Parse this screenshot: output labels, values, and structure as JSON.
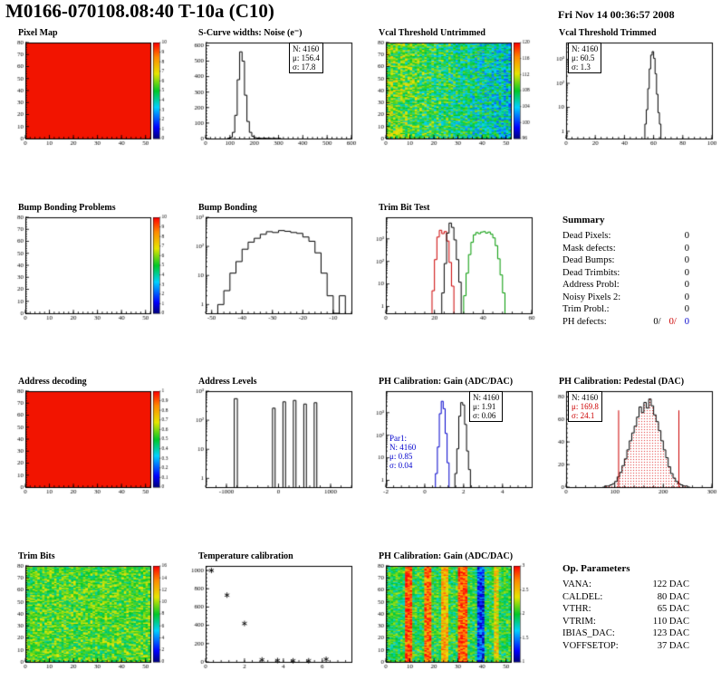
{
  "header": {
    "title": "M0166-070108.08:40 T-10a (C10)",
    "date": "Fri Nov 14 00:36:57 2008"
  },
  "summary": {
    "title": "Summary",
    "rows": [
      {
        "label": "Dead Pixels:",
        "value": "0"
      },
      {
        "label": "Mask defects:",
        "value": "0"
      },
      {
        "label": "Dead Bumps:",
        "value": "0"
      },
      {
        "label": "Dead Trimbits:",
        "value": "0"
      },
      {
        "label": "Address Probl:",
        "value": "0"
      },
      {
        "label": "Noisy Pixels 2:",
        "value": "0"
      },
      {
        "label": "Trim Probl.:",
        "value": "0"
      }
    ],
    "ph_defects": {
      "label": "PH defects:",
      "v1": "0/",
      "v2": "0/",
      "v3": "0"
    }
  },
  "op_parameters": {
    "title": "Op. Parameters",
    "rows": [
      {
        "label": "VANA:",
        "value": "122 DAC"
      },
      {
        "label": "CALDEL:",
        "value": "80 DAC"
      },
      {
        "label": "VTHR:",
        "value": "65 DAC"
      },
      {
        "label": "VTRIM:",
        "value": "110 DAC"
      },
      {
        "label": "IBIAS_DAC:",
        "value": "123 DAC"
      },
      {
        "label": "VOFFSETOP:",
        "value": "37 DAC"
      }
    ]
  },
  "colors": {
    "accent_red": "#cc0000",
    "accent_blue": "#0000cc",
    "map_red": "#f21400",
    "hist_green": "#009900"
  },
  "chart_data": [
    {
      "id": "pixel_map",
      "type": "heatmap",
      "title": "Pixel Map",
      "x_range": [
        0,
        52
      ],
      "y_range": [
        0,
        80
      ],
      "x_ticks": [
        0,
        10,
        20,
        30,
        40,
        50
      ],
      "y_ticks": [
        0,
        10,
        20,
        30,
        40,
        50,
        60,
        70,
        80
      ],
      "style": "solid",
      "color": "#f21400",
      "colorbar": {
        "min": 0,
        "max": 10,
        "ticks": [
          0,
          1,
          2,
          3,
          4,
          5,
          6,
          7,
          8,
          9,
          10
        ]
      }
    },
    {
      "id": "scurve_noise",
      "type": "hist",
      "title": "S-Curve widths: Noise (e⁻)",
      "x_range": [
        0,
        600
      ],
      "x_ticks": [
        0,
        100,
        200,
        300,
        400,
        500,
        600
      ],
      "yscale": "lin",
      "y_range": [
        0,
        620
      ],
      "y_ticks": [
        0,
        100,
        200,
        300,
        400,
        500,
        600
      ],
      "series": [
        {
          "color": "#000000",
          "bin_start": 90,
          "bin_width": 10,
          "counts": [
            2,
            8,
            40,
            150,
            380,
            560,
            500,
            280,
            110,
            40,
            14,
            6,
            3,
            2,
            1,
            2,
            1,
            1,
            0,
            1,
            0,
            1
          ]
        }
      ],
      "stats": [
        "N: 4160",
        "μ: 156.4",
        "σ: 17.8"
      ]
    },
    {
      "id": "vcal_threshold_untrimmed",
      "type": "heatmap",
      "title": "Vcal Threshold Untrimmed",
      "x_range": [
        0,
        52
      ],
      "y_range": [
        0,
        80
      ],
      "x_ticks": [
        0,
        10,
        20,
        30,
        40,
        50
      ],
      "y_ticks": [
        0,
        10,
        20,
        30,
        40,
        50,
        60,
        70,
        80
      ],
      "style": "noise",
      "noise": {
        "seed": 7,
        "base": 0.58,
        "amp": 0.19,
        "grad_x": -0.22
      },
      "colorbar": {
        "min": 96,
        "max": 120,
        "ticks": [
          96,
          100,
          104,
          108,
          112,
          116,
          120
        ]
      }
    },
    {
      "id": "vcal_threshold_trimmed",
      "type": "hist",
      "title": "Vcal Threshold Trimmed",
      "x_range": [
        0,
        100
      ],
      "x_ticks": [
        0,
        20,
        40,
        60,
        80,
        100
      ],
      "yscale": "log",
      "y_range": [
        0.5,
        5000
      ],
      "series": [
        {
          "color": "#000000",
          "bin_start": 54,
          "bin_width": 1,
          "counts": [
            2,
            8,
            60,
            400,
            1500,
            2100,
            1100,
            250,
            35,
            6,
            2
          ]
        }
      ],
      "stats": [
        "N: 4160",
        "μ: 60.5",
        "σ: 1.3"
      ]
    },
    {
      "id": "bump_bonding_problems",
      "type": "heatmap",
      "title": "Bump Bonding Problems",
      "x_range": [
        0,
        52
      ],
      "y_range": [
        0,
        80
      ],
      "x_ticks": [
        0,
        10,
        20,
        30,
        40,
        50
      ],
      "y_ticks": [
        0,
        10,
        20,
        30,
        40,
        50,
        60,
        70,
        80
      ],
      "style": "empty",
      "colorbar": {
        "min": 0,
        "max": 10,
        "ticks": [
          0,
          1,
          2,
          3,
          4,
          5,
          6,
          7,
          8,
          9,
          10
        ]
      }
    },
    {
      "id": "bump_bonding",
      "type": "hist",
      "title": "Bump Bonding",
      "x_range": [
        -52,
        -4
      ],
      "x_ticks": [
        -50,
        -40,
        -30,
        -20,
        -10
      ],
      "yscale": "log",
      "y_range": [
        0.5,
        1000
      ],
      "series": [
        {
          "color": "#000000",
          "bin_start": -48,
          "bin_width": 2,
          "counts": [
            1,
            3,
            12,
            30,
            80,
            140,
            190,
            260,
            320,
            300,
            350,
            330,
            300,
            280,
            210,
            150,
            60,
            12,
            2,
            0,
            2
          ]
        }
      ]
    },
    {
      "id": "trim_bit_test",
      "type": "hist",
      "title": "Trim Bit Test",
      "x_range": [
        0,
        60
      ],
      "x_ticks": [
        0,
        20,
        40,
        60
      ],
      "yscale": "log",
      "y_range": [
        0.5,
        9000
      ],
      "series": [
        {
          "color": "#009900",
          "bin_start": 32,
          "bin_width": 1,
          "counts": [
            3,
            30,
            200,
            700,
            1500,
            1900,
            1700,
            2000,
            2100,
            1800,
            2000,
            1600,
            1100,
            500,
            130,
            25,
            4
          ]
        },
        {
          "color": "#cc0000",
          "bin_start": 19,
          "bin_width": 1,
          "counts": [
            5,
            120,
            1200,
            2400,
            1700,
            2100,
            800,
            90,
            8
          ]
        },
        {
          "color": "#000000",
          "bin_start": 23,
          "bin_width": 1,
          "counts": [
            4,
            80,
            1800,
            5000,
            3200,
            900,
            120,
            12
          ]
        }
      ]
    },
    {
      "id": "address_decoding",
      "type": "heatmap",
      "title": "Address decoding",
      "x_range": [
        0,
        52
      ],
      "y_range": [
        0,
        80
      ],
      "x_ticks": [
        0,
        10,
        20,
        30,
        40,
        50
      ],
      "y_ticks": [
        0,
        10,
        20,
        30,
        40,
        50,
        60,
        70,
        80
      ],
      "style": "solid",
      "color": "#f21400",
      "colorbar": {
        "min": 0,
        "max": 1,
        "ticks": [
          0,
          0.1,
          0.2,
          0.3,
          0.4,
          0.5,
          0.6,
          0.7,
          0.8,
          0.9,
          1
        ]
      }
    },
    {
      "id": "address_levels",
      "type": "hist",
      "title": "Address Levels",
      "x_range": [
        -1400,
        1400
      ],
      "x_ticks": [
        -1000,
        0,
        1000
      ],
      "yscale": "log",
      "y_range": [
        0.5,
        1000
      ],
      "series": [
        {
          "color": "#000000",
          "spikes": [
            [
              -820,
              60,
              550
            ],
            [
              -90,
              50,
              260
            ],
            [
              110,
              50,
              430
            ],
            [
              310,
              50,
              480
            ],
            [
              510,
              50,
              360
            ],
            [
              710,
              50,
              400
            ]
          ]
        }
      ]
    },
    {
      "id": "ph_calibration_gain_hist",
      "type": "hist",
      "title": "PH Calibration: Gain (ADC/DAC)",
      "x_range": [
        -2,
        5.5
      ],
      "x_ticks": [
        -2,
        0,
        2,
        4
      ],
      "yscale": "log",
      "y_range": [
        0.5,
        9000
      ],
      "series": [
        {
          "color": "#0000cc",
          "bin_start": 0.55,
          "bin_width": 0.1,
          "counts": [
            2,
            30,
            900,
            3200,
            1500,
            120,
            6
          ]
        },
        {
          "color": "#000000",
          "bin_start": 1.55,
          "bin_width": 0.1,
          "counts": [
            2,
            25,
            700,
            2800,
            2200,
            300,
            20,
            3
          ]
        }
      ],
      "stats": [
        "N: 4160",
        "μ: 1.91",
        "σ: 0.06"
      ],
      "stats2": [
        "Par1:",
        "N: 4160",
        "μ: 0.85",
        "σ: 0.04"
      ]
    },
    {
      "id": "ph_calibration_pedestal",
      "type": "hist",
      "title": "PH Calibration: Pedestal (DAC)",
      "x_range": [
        0,
        300
      ],
      "x_ticks": [
        0,
        100,
        200,
        300
      ],
      "yscale": "lin",
      "y_range": [
        0,
        85
      ],
      "y_ticks": [
        0,
        20,
        40,
        60,
        80
      ],
      "series": [
        {
          "color": "#000000",
          "fill": "red-dots",
          "bin_start": 75,
          "bin_width": 5,
          "counts": [
            0,
            1,
            1,
            2,
            3,
            5,
            9,
            13,
            19,
            25,
            33,
            41,
            48,
            54,
            62,
            71,
            66,
            75,
            70,
            78,
            72,
            64,
            58,
            50,
            41,
            33,
            26,
            18,
            12,
            8,
            5,
            3,
            2,
            1,
            1,
            0
          ]
        }
      ],
      "vlines": [
        [
          108,
          "#cc0000"
        ],
        [
          232,
          "#cc0000"
        ]
      ],
      "stats": [
        "N: 4160",
        "μ: 169.8",
        "σ: 24.1"
      ]
    },
    {
      "id": "trim_bits",
      "type": "heatmap",
      "title": "Trim Bits",
      "x_range": [
        0,
        52
      ],
      "y_range": [
        0,
        80
      ],
      "x_ticks": [
        0,
        10,
        20,
        30,
        40,
        50
      ],
      "y_ticks": [
        0,
        10,
        20,
        30,
        40,
        50,
        60,
        70,
        80
      ],
      "style": "noise",
      "noise": {
        "seed": 12,
        "base": 0.55,
        "amp": 0.15,
        "grad_x": 0
      },
      "colorbar": {
        "min": 0,
        "max": 16,
        "ticks": [
          0,
          2,
          4,
          6,
          8,
          10,
          12,
          14,
          16
        ]
      }
    },
    {
      "id": "temperature_calibration",
      "type": "scatter",
      "title": "Temperature calibration",
      "x_range": [
        0,
        7.5
      ],
      "x_ticks": [
        0,
        2,
        4,
        6
      ],
      "yscale": "lin",
      "y_range": [
        0,
        1050
      ],
      "y_ticks": [
        0,
        200,
        400,
        600,
        800,
        1000
      ],
      "points": [
        [
          0.3,
          1000
        ],
        [
          1.1,
          730
        ],
        [
          2.0,
          420
        ],
        [
          2.9,
          22
        ],
        [
          3.7,
          15
        ],
        [
          4.5,
          12
        ],
        [
          5.3,
          12
        ],
        [
          6.2,
          28
        ]
      ]
    },
    {
      "id": "ph_calibration_gain_map",
      "type": "heatmap",
      "title": "PH Calibration: Gain (ADC/DAC)",
      "x_range": [
        0,
        52
      ],
      "y_range": [
        0,
        80
      ],
      "x_ticks": [
        0,
        10,
        20,
        30,
        40,
        50
      ],
      "y_ticks": [
        0,
        10,
        20,
        30,
        40,
        50,
        60,
        70,
        80
      ],
      "style": "noise",
      "noise": {
        "seed": 99,
        "base": 0.5,
        "amp": 0.15,
        "grad_x": 0
      },
      "stripes": [
        [
          8,
          10,
          0.42
        ],
        [
          16,
          18,
          0.38
        ],
        [
          23,
          25,
          0.28
        ],
        [
          30,
          33,
          0.4
        ],
        [
          38,
          40,
          -0.34
        ],
        [
          45,
          46,
          0.22
        ]
      ],
      "colorbar": {
        "min": 1,
        "max": 3,
        "ticks": [
          1,
          1.5,
          2,
          2.5,
          3
        ]
      }
    }
  ]
}
